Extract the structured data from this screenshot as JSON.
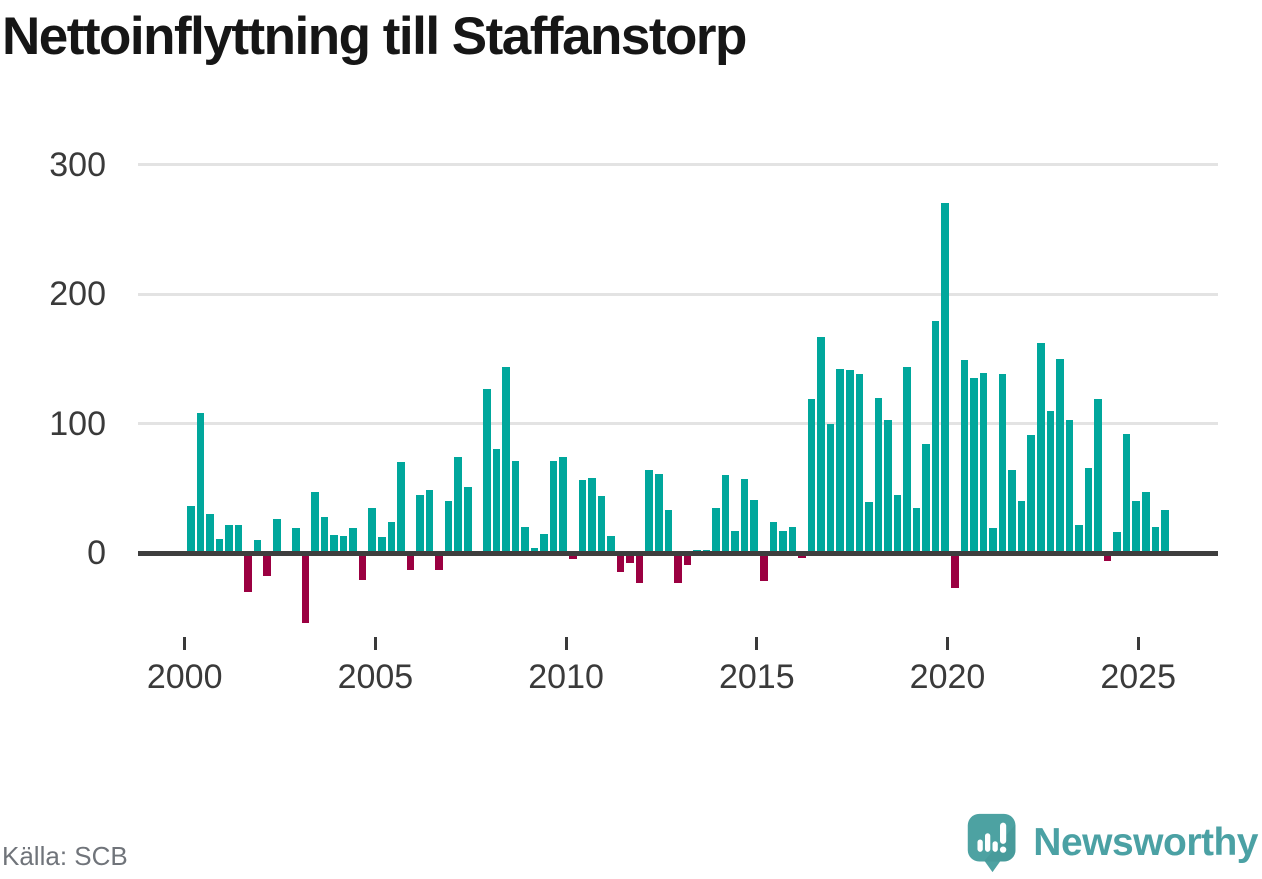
{
  "title": "Nettoinflyttning till Staffanstorp",
  "source": "Källa: SCB",
  "branding": {
    "logo_name": "newsworthy-logo",
    "logo_text": "Newsworthy"
  },
  "colors": {
    "positive": "#00a79c",
    "negative": "#9b0041",
    "grid": "#e3e3e3",
    "zero_axis": "#3e3e3e",
    "tick_label": "#3a3a3a",
    "title": "#161616",
    "source": "#70747a",
    "brand": "#4ba1a4"
  },
  "chart_data": {
    "type": "bar",
    "title": "Nettoinflyttning till Staffanstorp",
    "xlabel": "",
    "ylabel": "",
    "frequency": "quarterly",
    "start_period": "2000-Q1",
    "end_period": "2025-Q3",
    "ylim": [
      -60,
      310
    ],
    "yticks": [
      0,
      100,
      200,
      300
    ],
    "xticks": [
      "2000",
      "2005",
      "2010",
      "2015",
      "2020",
      "2025"
    ],
    "grid": "horizontal",
    "legend": "none",
    "values": [
      36,
      108,
      30,
      11,
      22,
      22,
      -30,
      10,
      -18,
      26,
      0,
      19,
      -54,
      47,
      28,
      14,
      13,
      19,
      -21,
      35,
      12,
      24,
      70,
      -13,
      45,
      49,
      -13,
      40,
      74,
      51,
      0,
      127,
      80,
      144,
      71,
      20,
      4,
      15,
      71,
      74,
      -5,
      56,
      58,
      44,
      13,
      -15,
      -8,
      -23,
      64,
      61,
      33,
      -23,
      -9,
      2,
      2,
      35,
      60,
      17,
      57,
      41,
      -22,
      24,
      17,
      20,
      -4,
      119,
      167,
      100,
      142,
      141,
      138,
      39,
      120,
      103,
      45,
      144,
      35,
      84,
      179,
      270,
      -27,
      149,
      135,
      139,
      19,
      138,
      64,
      40,
      91,
      162,
      110,
      150,
      103,
      22,
      66,
      119,
      -6,
      16,
      92,
      40,
      47,
      20,
      33
    ]
  }
}
